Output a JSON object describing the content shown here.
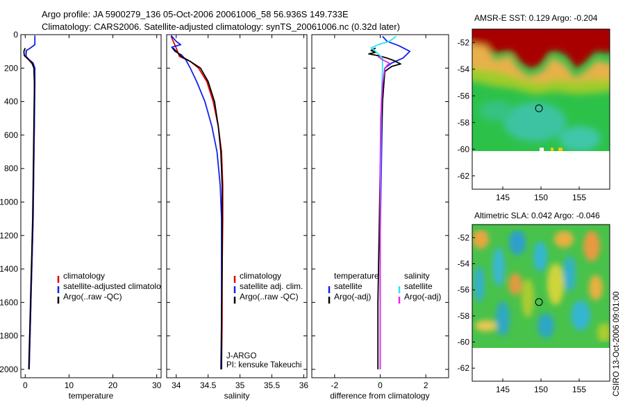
{
  "figure": {
    "title_line1": "Argo profile: JA 5900279_136 05-Oct-2006 20061006_58 56.936S 149.733E",
    "title_line2": "Climatology: CARS2006. Satellite-adjusted climatology: synTS_20061006.nc (0.32d later)",
    "side_stamp": "CSIRO 13-Oct-2006 09:01:00",
    "credit_line1": "J-ARGO",
    "credit_line2": "PI: kensuke Takeuchi"
  },
  "colors": {
    "climatology": "#e00000",
    "satellite": "#1020f0",
    "argo": "#000000",
    "sal_satellite": "#22e8f0",
    "sal_argo": "#f020f0"
  },
  "chart_data": [
    {
      "type": "line",
      "xlabel": "temperature",
      "ylabel": "",
      "xlim": [
        -1,
        31
      ],
      "ylim": [
        2050,
        0
      ],
      "y_reversed": true,
      "xticks": [
        "0",
        "10",
        "20",
        "30"
      ],
      "xtick_values": [
        0,
        10,
        20,
        30
      ],
      "yticks": [
        "0",
        "200",
        "400",
        "600",
        "800",
        "1000",
        "1200",
        "1400",
        "1600",
        "1800",
        "2000"
      ],
      "ytick_values": [
        0,
        200,
        400,
        600,
        800,
        1000,
        1200,
        1400,
        1600,
        1800,
        2000
      ],
      "legend": [
        "climatology",
        "satellite-adjusted climatology",
        "Argo(..raw -QC)"
      ],
      "series": [
        {
          "name": "climatology",
          "color_key": "climatology",
          "points": [
            [
              0.3,
              100
            ],
            [
              0.1,
              130
            ],
            [
              0.8,
              150
            ],
            [
              1.6,
              175
            ],
            [
              2.0,
              200
            ],
            [
              2.1,
              300
            ],
            [
              2.1,
              500
            ],
            [
              2.0,
              700
            ],
            [
              1.9,
              900
            ],
            [
              1.8,
              1100
            ],
            [
              1.6,
              1300
            ],
            [
              1.4,
              1500
            ],
            [
              1.2,
              1700
            ],
            [
              1.0,
              1900
            ],
            [
              0.9,
              2000
            ]
          ]
        },
        {
          "name": "satellite-adjusted climatology",
          "color_key": "satellite",
          "points": [
            [
              2.2,
              5
            ],
            [
              2.2,
              60
            ],
            [
              0.9,
              85
            ],
            [
              0.2,
              95
            ],
            [
              0.2,
              130
            ],
            [
              0.9,
              150
            ],
            [
              1.8,
              170
            ],
            [
              2.2,
              200
            ],
            [
              2.2,
              300
            ],
            [
              2.1,
              500
            ],
            [
              2.0,
              700
            ],
            [
              1.9,
              900
            ],
            [
              1.8,
              1100
            ],
            [
              1.6,
              1300
            ],
            [
              1.4,
              1500
            ],
            [
              1.2,
              1700
            ],
            [
              1.0,
              1900
            ],
            [
              0.9,
              2000
            ]
          ]
        },
        {
          "name": "Argo(..raw -QC)",
          "color_key": "argo",
          "points": [
            [
              0.0,
              80
            ],
            [
              -0.3,
              100
            ],
            [
              -0.2,
              125
            ],
            [
              0.6,
              145
            ],
            [
              1.6,
              170
            ],
            [
              2.0,
              200
            ],
            [
              2.1,
              300
            ],
            [
              2.0,
              500
            ],
            [
              1.9,
              700
            ],
            [
              1.8,
              900
            ],
            [
              1.7,
              1100
            ],
            [
              1.5,
              1300
            ],
            [
              1.3,
              1500
            ],
            [
              1.1,
              1700
            ],
            [
              0.9,
              1900
            ],
            [
              0.8,
              2000
            ]
          ]
        }
      ]
    },
    {
      "type": "line",
      "xlabel": "salinity",
      "ylabel": "",
      "xlim": [
        33.85,
        36.05
      ],
      "ylim": [
        2050,
        0
      ],
      "y_reversed": true,
      "xticks": [
        "34",
        "34.5",
        "35",
        "35.5",
        "36"
      ],
      "xtick_values": [
        34,
        34.5,
        35,
        35.5,
        36
      ],
      "legend": [
        "climatology",
        "satellite adj. clim.",
        "Argo(..raw -QC)"
      ],
      "series": [
        {
          "name": "climatology",
          "color_key": "climatology",
          "points": [
            [
              33.92,
              10
            ],
            [
              34.0,
              80
            ],
            [
              34.05,
              130
            ],
            [
              34.22,
              160
            ],
            [
              34.35,
              200
            ],
            [
              34.48,
              280
            ],
            [
              34.58,
              400
            ],
            [
              34.66,
              550
            ],
            [
              34.71,
              700
            ],
            [
              34.73,
              900
            ],
            [
              34.73,
              1100
            ],
            [
              34.72,
              1400
            ],
            [
              34.72,
              1700
            ],
            [
              34.71,
              2000
            ]
          ]
        },
        {
          "name": "satellite adj. clim.",
          "color_key": "satellite",
          "points": [
            [
              33.92,
              5
            ],
            [
              34.0,
              40
            ],
            [
              34.07,
              60
            ],
            [
              33.93,
              75
            ],
            [
              33.98,
              100
            ],
            [
              34.08,
              120
            ],
            [
              34.15,
              150
            ],
            [
              34.22,
              200
            ],
            [
              34.32,
              280
            ],
            [
              34.45,
              400
            ],
            [
              34.56,
              550
            ],
            [
              34.64,
              700
            ],
            [
              34.69,
              900
            ],
            [
              34.71,
              1100
            ],
            [
              34.71,
              1400
            ],
            [
              34.71,
              1700
            ],
            [
              34.7,
              2000
            ]
          ]
        },
        {
          "name": "Argo(..raw -QC)",
          "color_key": "argo",
          "points": [
            [
              33.95,
              80
            ],
            [
              34.0,
              100
            ],
            [
              34.08,
              130
            ],
            [
              34.22,
              160
            ],
            [
              34.38,
              200
            ],
            [
              34.5,
              280
            ],
            [
              34.6,
              400
            ],
            [
              34.66,
              550
            ],
            [
              34.7,
              700
            ],
            [
              34.72,
              900
            ],
            [
              34.72,
              1100
            ],
            [
              34.72,
              1400
            ],
            [
              34.71,
              1700
            ],
            [
              34.71,
              2000
            ]
          ]
        }
      ]
    },
    {
      "type": "line",
      "xlabel": "difference from climatology",
      "ylabel": "",
      "xlim": [
        -3.0,
        3.0
      ],
      "ylim": [
        2050,
        0
      ],
      "y_reversed": true,
      "xticks": [
        "-2",
        "0",
        "2"
      ],
      "xtick_values": [
        -2,
        0,
        2
      ],
      "legend": [
        "temperature",
        "satellite",
        "Argo(-adj)",
        "salinity",
        "satellite",
        "Argo(-adj)"
      ],
      "series": [
        {
          "name": "temperature satellite",
          "color_key": "satellite",
          "points": [
            [
              0.1,
              10
            ],
            [
              0.3,
              40
            ],
            [
              0.8,
              65
            ],
            [
              1.3,
              100
            ],
            [
              1.0,
              140
            ],
            [
              0.5,
              170
            ],
            [
              0.2,
              200
            ],
            [
              0.1,
              400
            ],
            [
              0.05,
              800
            ],
            [
              0.0,
              1200
            ],
            [
              0.0,
              1600
            ],
            [
              0.0,
              2000
            ]
          ]
        },
        {
          "name": "temperature Argo(-adj)",
          "color_key": "argo",
          "points": [
            [
              -0.2,
              80
            ],
            [
              -0.4,
              95
            ],
            [
              -0.2,
              105
            ],
            [
              -0.5,
              115
            ],
            [
              -0.1,
              125
            ],
            [
              0.3,
              140
            ],
            [
              0.6,
              155
            ],
            [
              0.9,
              175
            ],
            [
              0.5,
              190
            ],
            [
              0.2,
              220
            ],
            [
              0.1,
              400
            ],
            [
              0.0,
              800
            ],
            [
              -0.05,
              1200
            ],
            [
              -0.1,
              1600
            ],
            [
              -0.1,
              2000
            ]
          ]
        },
        {
          "name": "salinity satellite",
          "color_key": "sal_satellite",
          "points": [
            [
              0.7,
              10
            ],
            [
              0.4,
              40
            ],
            [
              -0.1,
              60
            ],
            [
              -0.4,
              80
            ],
            [
              -0.2,
              100
            ],
            [
              0.1,
              140
            ],
            [
              0.1,
              200
            ],
            [
              0.05,
              400
            ],
            [
              0.02,
              800
            ],
            [
              0.0,
              1200
            ],
            [
              0.0,
              1600
            ],
            [
              0.0,
              2000
            ]
          ]
        },
        {
          "name": "salinity Argo(-adj)",
          "color_key": "sal_argo",
          "points": [
            [
              -0.1,
              130
            ],
            [
              0.1,
              150
            ],
            [
              0.4,
              170
            ],
            [
              0.2,
              200
            ],
            [
              0.1,
              300
            ],
            [
              0.02,
              500
            ],
            [
              0.0,
              800
            ],
            [
              0.0,
              1200
            ],
            [
              0.0,
              1600
            ],
            [
              0.0,
              2000
            ]
          ]
        }
      ]
    },
    {
      "type": "heatmap",
      "title": "AMSR-E SST: 0.129 Argo: -0.204",
      "xlim": [
        141,
        159
      ],
      "ylim": [
        -63,
        -51
      ],
      "xticks": [
        "145",
        "150",
        "155"
      ],
      "xtick_values": [
        145,
        150,
        155
      ],
      "yticks": [
        "-52",
        "-54",
        "-56",
        "-58",
        "-60",
        "-62"
      ],
      "ytick_values": [
        -52,
        -54,
        -56,
        -58,
        -60,
        -62
      ],
      "marker": [
        149.733,
        -56.936
      ],
      "data_lat_range": [
        -60,
        -51
      ]
    },
    {
      "type": "heatmap",
      "title": "Altimetric SLA: 0.042 Argo: -0.046",
      "xlim": [
        141,
        159
      ],
      "ylim": [
        -63,
        -51
      ],
      "xticks": [
        "145",
        "150",
        "155"
      ],
      "xtick_values": [
        145,
        150,
        155
      ],
      "yticks": [
        "-52",
        "-54",
        "-56",
        "-58",
        "-60",
        "-62"
      ],
      "ytick_values": [
        -52,
        -54,
        -56,
        -58,
        -60,
        -62
      ],
      "marker": [
        149.733,
        -56.936
      ],
      "data_lat_range": [
        -60,
        -51
      ]
    }
  ]
}
